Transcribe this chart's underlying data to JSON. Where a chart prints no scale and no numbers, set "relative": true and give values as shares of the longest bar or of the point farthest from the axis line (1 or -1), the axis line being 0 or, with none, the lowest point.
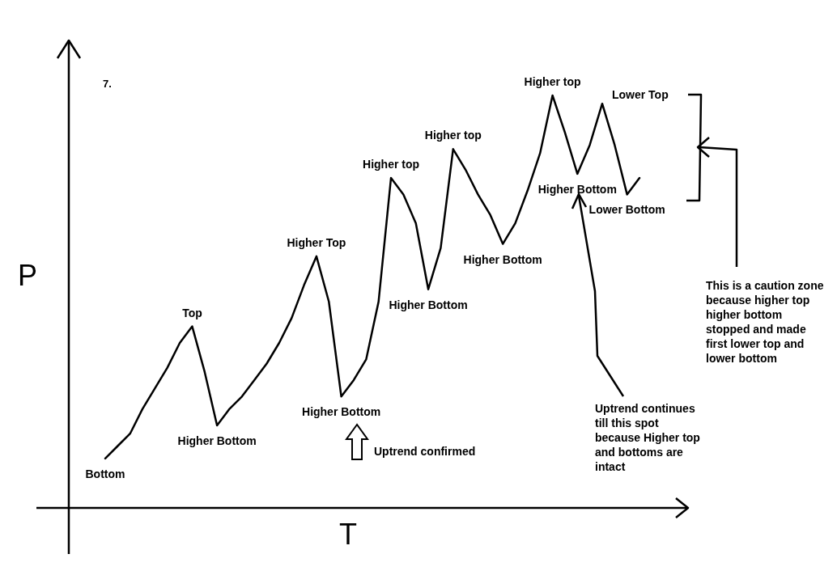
{
  "chart_data": {
    "type": "line",
    "title": "7.",
    "xlabel": "T",
    "ylabel": "P",
    "relative": true,
    "grid": false,
    "marker": "none",
    "line_style": "solid",
    "categories": [
      null,
      null,
      null,
      null,
      null,
      null,
      null,
      null,
      null,
      null,
      null,
      null,
      null,
      null,
      null,
      null,
      null,
      null,
      null,
      null,
      null,
      null,
      null,
      null,
      null,
      null,
      null,
      null,
      null,
      null,
      null,
      null,
      null,
      null,
      null,
      null,
      null,
      null,
      null,
      null,
      null,
      null,
      null,
      null
    ],
    "series": [
      {
        "color": "#000000",
        "values": [
          0.12,
          0.15,
          0.18,
          0.24,
          0.29,
          0.34,
          0.4,
          0.44,
          0.33,
          0.2,
          0.24,
          0.27,
          0.31,
          0.35,
          0.4,
          0.46,
          0.54,
          0.61,
          0.5,
          0.27,
          0.31,
          0.36,
          0.5,
          0.8,
          0.76,
          0.69,
          0.53,
          0.63,
          0.87,
          0.82,
          0.76,
          0.71,
          0.64,
          0.69,
          0.77,
          0.86,
          1,
          0.91,
          0.81,
          0.88,
          0.98,
          0.88,
          0.76,
          0.8
        ]
      }
    ],
    "annotations": [
      "Bottom",
      "Top",
      "Higher Bottom",
      "Higher Top",
      "Higher Bottom",
      "Higher top",
      "Higher Bottom",
      "Higher top",
      "Higher Bottom",
      "Higher top",
      "Higher Bottom",
      "Lower Top",
      "Lower Bottom",
      "Uptrend confirmed",
      "Uptrend continues till this spot because Higher top and bottoms are intact",
      "This is a caution zone because higher top higher bottom stopped and made first lower top and lower bottom"
    ]
  }
}
